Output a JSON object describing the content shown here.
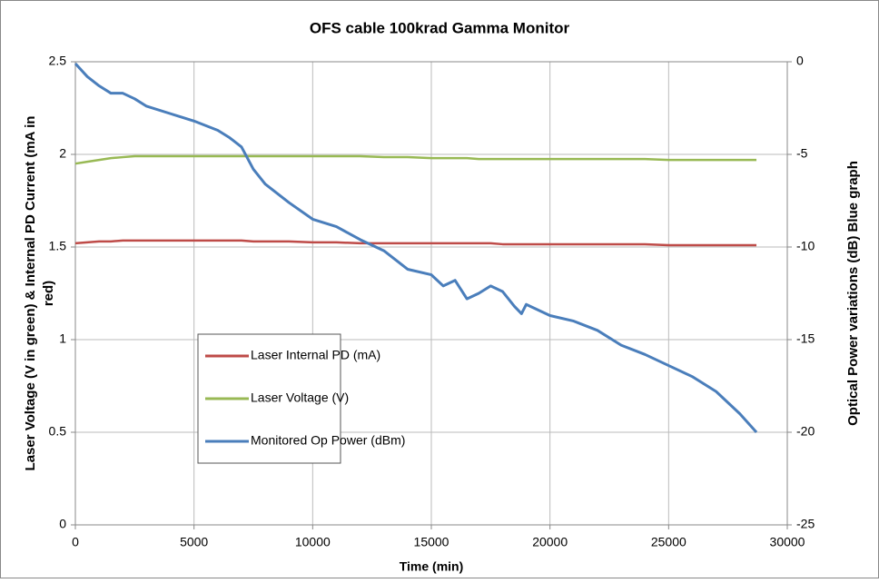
{
  "chart_data": {
    "type": "line",
    "title": "OFS cable 100krad Gamma Monitor",
    "xlabel": "Time (min)",
    "ylabel": [
      "Laser Voltage  (V in green) & Internal PD Current (mA in",
      "red)"
    ],
    "y2label": "Optical Power variations (dB) Blue graph",
    "x": [
      0,
      500,
      1000,
      1500,
      2000,
      2500,
      3000,
      4000,
      5000,
      6000,
      6500,
      7000,
      7500,
      8000,
      9000,
      10000,
      11000,
      12000,
      13000,
      14000,
      15000,
      15500,
      16000,
      16500,
      17000,
      17500,
      18000,
      18500,
      18800,
      19000,
      20000,
      21000,
      22000,
      23000,
      24000,
      25000,
      26000,
      27000,
      28000,
      28700
    ],
    "series": [
      {
        "name": "Laser Internal  PD (mA)",
        "color": "#be4b48",
        "values": [
          1.52,
          1.525,
          1.53,
          1.53,
          1.535,
          1.535,
          1.535,
          1.535,
          1.535,
          1.535,
          1.535,
          1.535,
          1.53,
          1.53,
          1.53,
          1.525,
          1.525,
          1.52,
          1.52,
          1.52,
          1.52,
          1.52,
          1.52,
          1.52,
          1.52,
          1.52,
          1.515,
          1.515,
          1.515,
          1.515,
          1.515,
          1.515,
          1.515,
          1.515,
          1.515,
          1.51,
          1.51,
          1.51,
          1.51,
          1.51
        ]
      },
      {
        "name": "Laser Voltage (V)",
        "color": "#98b954",
        "values": [
          1.95,
          1.96,
          1.97,
          1.98,
          1.985,
          1.99,
          1.99,
          1.99,
          1.99,
          1.99,
          1.99,
          1.99,
          1.99,
          1.99,
          1.99,
          1.99,
          1.99,
          1.99,
          1.985,
          1.985,
          1.98,
          1.98,
          1.98,
          1.98,
          1.975,
          1.975,
          1.975,
          1.975,
          1.975,
          1.975,
          1.975,
          1.975,
          1.975,
          1.975,
          1.975,
          1.97,
          1.97,
          1.97,
          1.97,
          1.97
        ]
      },
      {
        "name": "Monitored Op Power (dBm)",
        "color": "#4a7ebb",
        "axis": "y2",
        "values": [
          -0.1,
          -0.8,
          -1.3,
          -1.7,
          -1.7,
          -2.0,
          -2.4,
          -2.8,
          -3.2,
          -3.7,
          -4.1,
          -4.6,
          -5.8,
          -6.6,
          -7.6,
          -8.5,
          -8.9,
          -9.6,
          -10.2,
          -11.2,
          -11.5,
          -12.1,
          -11.8,
          -12.8,
          -12.5,
          -12.1,
          -12.4,
          -13.2,
          -13.6,
          -13.1,
          -13.7,
          -14.0,
          -14.5,
          -15.3,
          -15.8,
          -16.4,
          -17.0,
          -17.8,
          -19.0,
          -20.0
        ]
      }
    ],
    "xlim": [
      0,
      30000
    ],
    "xticks": [
      0,
      5000,
      10000,
      15000,
      20000,
      25000,
      30000
    ],
    "ylim": [
      0,
      2.5
    ],
    "yticks": [
      0,
      0.5,
      1,
      1.5,
      2,
      2.5
    ],
    "y2lim": [
      -25,
      0
    ],
    "y2ticks": [
      -25,
      -20,
      -15,
      -10,
      -5,
      0
    ],
    "grid": true
  }
}
